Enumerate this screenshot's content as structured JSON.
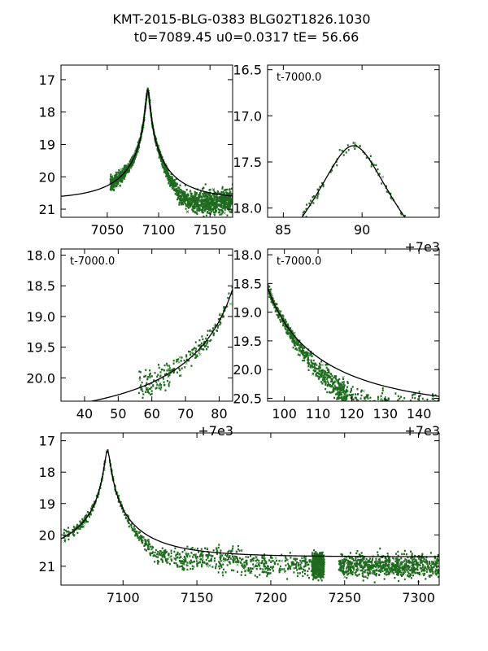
{
  "title": {
    "line1": "KMT-2015-BLG-0383 BLG02T1826.1030",
    "line2": "t0=7089.45 u0=0.0317 tE=  56.66"
  },
  "model": {
    "t0": 7089.45,
    "u0": 0.0317,
    "tE": 56.66,
    "mag_base": 20.7,
    "blend_factor": 0.7
  },
  "colors": {
    "data": "#1f6a1f",
    "model": "#000000",
    "axes": "#000000"
  },
  "chart_data": [
    {
      "id": "p1",
      "type": "scatter",
      "xlim": [
        7005,
        7172
      ],
      "ylim": [
        21.25,
        16.55
      ],
      "x_ticks": [
        7050,
        7100,
        7150
      ],
      "x_tick_labels": [
        "7050",
        "7100",
        "7150"
      ],
      "y_ticks": [
        17,
        18,
        19,
        20,
        21
      ],
      "y_tick_labels": [
        "17",
        "18",
        "19",
        "20",
        "21"
      ],
      "inner_label": "",
      "offset_label": ""
    },
    {
      "id": "p2",
      "type": "scatter",
      "xlim": [
        7084,
        7094.9
      ],
      "ylim": [
        18.1,
        16.45
      ],
      "x_ticks": [
        7085,
        7090
      ],
      "x_tick_labels": [
        "85",
        "90"
      ],
      "y_ticks": [
        16.5,
        17.0,
        17.5,
        18.0
      ],
      "y_tick_labels": [
        "16.5",
        "17.0",
        "17.5",
        "18.0"
      ],
      "inner_label": "t-7000.0",
      "offset_label": "+7e3"
    },
    {
      "id": "p3",
      "type": "scatter",
      "xlim": [
        7033,
        7084
      ],
      "ylim": [
        20.38,
        17.9
      ],
      "x_ticks": [
        7040,
        7050,
        7060,
        7070,
        7080
      ],
      "x_tick_labels": [
        "40",
        "50",
        "60",
        "70",
        "80"
      ],
      "y_ticks": [
        18.0,
        18.5,
        19.0,
        19.5,
        20.0
      ],
      "y_tick_labels": [
        "18.0",
        "18.5",
        "19.0",
        "19.5",
        "20.0"
      ],
      "inner_label": "t-7000.0",
      "offset_label": "+7e3"
    },
    {
      "id": "p4",
      "type": "scatter",
      "xlim": [
        7095,
        7146
      ],
      "ylim": [
        20.55,
        17.9
      ],
      "x_ticks": [
        7100,
        7110,
        7120,
        7130,
        7140
      ],
      "x_tick_labels": [
        "100",
        "110",
        "120",
        "130",
        "140"
      ],
      "y_ticks": [
        18.0,
        18.5,
        19.0,
        19.5,
        20.0,
        20.5
      ],
      "y_tick_labels": [
        "18.0",
        "18.5",
        "19.0",
        "19.5",
        "20.0",
        "20.5"
      ],
      "inner_label": "t-7000.0",
      "offset_label": "+7e3"
    },
    {
      "id": "p5",
      "type": "scatter",
      "xlim": [
        7058,
        7314
      ],
      "ylim": [
        21.6,
        16.75
      ],
      "x_ticks": [
        7100,
        7150,
        7200,
        7250,
        7300
      ],
      "x_tick_labels": [
        "7100",
        "7150",
        "7200",
        "7250",
        "7300"
      ],
      "y_ticks": [
        17,
        18,
        19,
        20,
        21
      ],
      "y_tick_labels": [
        "17",
        "18",
        "19",
        "20",
        "21"
      ],
      "inner_label": "",
      "offset_label": ""
    }
  ]
}
